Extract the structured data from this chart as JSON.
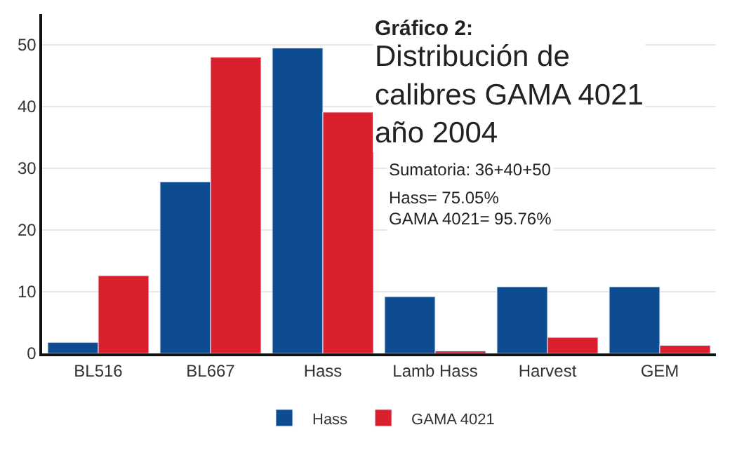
{
  "chart_data": {
    "type": "bar",
    "title": "Gráfico 2:",
    "subtitle": "Distribución de calibres GAMA 4021 año 2004",
    "categories": [
      "BL516",
      "BL667",
      "Hass",
      "Lamb Hass",
      "Harvest",
      "GEM"
    ],
    "series": [
      {
        "name": "Hass",
        "color": "#0d4c91",
        "values": [
          1.8,
          27.8,
          49.5,
          9.2,
          10.8,
          10.8
        ]
      },
      {
        "name": "GAMA 4021",
        "color": "#d9202c",
        "values": [
          12.6,
          48.0,
          39.1,
          0.4,
          2.6,
          1.3
        ]
      }
    ],
    "ylim": [
      0,
      55
    ],
    "yticks": [
      0,
      10,
      20,
      30,
      40,
      50
    ],
    "grid": "y",
    "legend": "bottom",
    "annotations": [
      "Sumatoria: 36+40+50",
      "Hass= 75.05%",
      "GAMA 4021= 95.76%"
    ]
  }
}
